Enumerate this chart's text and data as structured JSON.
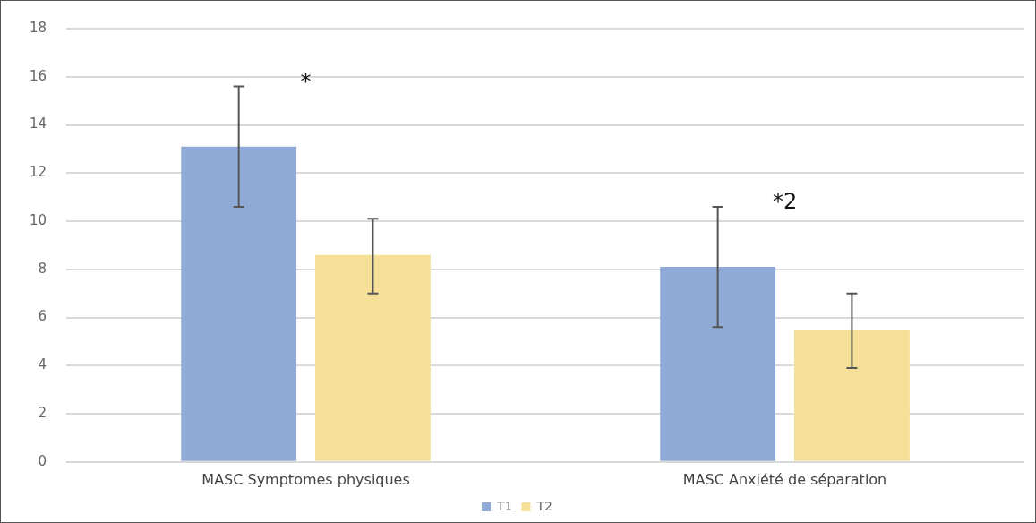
{
  "chart_data": {
    "type": "bar",
    "categories": [
      "MASC Symptomes physiques",
      "MASC Anxiété de séparation"
    ],
    "series": [
      {
        "name": "T1",
        "color": "#8faad6",
        "values": [
          13.1,
          8.1
        ],
        "errors": [
          [
            10.6,
            15.6
          ],
          [
            5.6,
            10.6
          ]
        ]
      },
      {
        "name": "T2",
        "color": "#f6df97",
        "values": [
          8.6,
          5.5
        ],
        "errors": [
          [
            7.0,
            10.1
          ],
          [
            3.9,
            7.0
          ]
        ]
      }
    ],
    "ylim": [
      0,
      18
    ],
    "yticks": [
      0,
      2,
      4,
      6,
      8,
      10,
      12,
      14,
      16,
      18
    ],
    "grid": "y",
    "legend": "bottom",
    "annotations": [
      "*",
      "*2"
    ]
  }
}
